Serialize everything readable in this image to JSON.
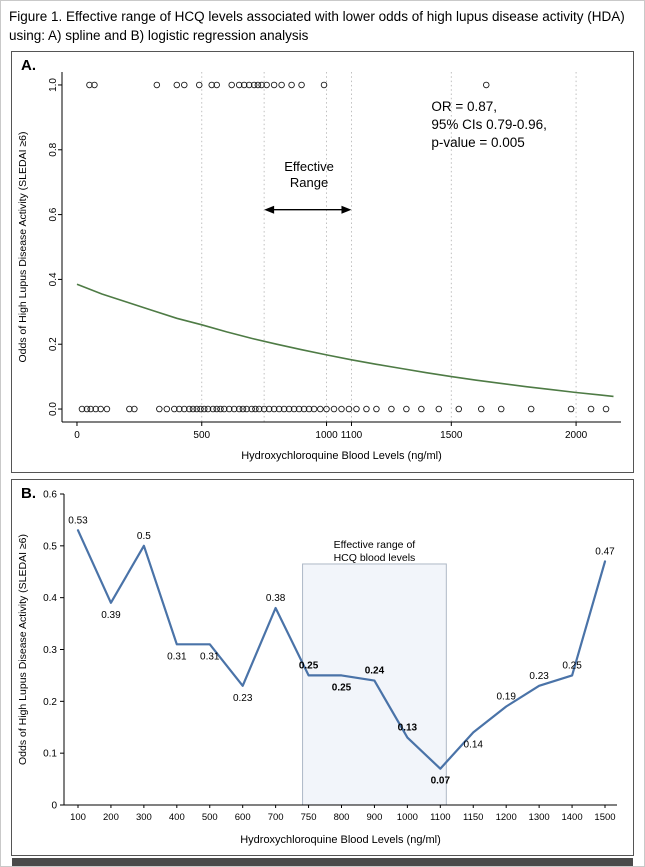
{
  "figure": {
    "title": "Figure 1. Effective range of HCQ levels associated with lower odds of high lupus disease activity (HDA) using: A) spline and B) logistic regression analysis"
  },
  "panels": {
    "a": {
      "label": "A."
    },
    "b": {
      "label": "B."
    }
  },
  "chart_data": [
    {
      "type": "line",
      "panel": "A",
      "subtype": "spline with binary outcome rug points",
      "xlabel": "Hydroxychloroquine Blood Levels (ng/ml)",
      "ylabel": "Odds of High Lupus Disease Activity (SLEDAI ≥6)",
      "xlim": [
        -60,
        2180
      ],
      "ylim": [
        -0.04,
        1.04
      ],
      "xticks": [
        0,
        500,
        1000,
        1100,
        1500,
        2000
      ],
      "yticks": [
        0.0,
        0.2,
        0.4,
        0.6,
        0.8,
        1.0
      ],
      "grid_x_dashed": [
        500,
        750,
        1000,
        1100,
        1500,
        2000
      ],
      "stats_lines": [
        "OR = 0.87,",
        "95% CIs 0.79-0.96,",
        "p-value = 0.005"
      ],
      "effective": {
        "label_lines": [
          "Effective",
          "Range"
        ],
        "label_x": 930,
        "label_y": 0.735,
        "range": [
          750,
          1100
        ],
        "arrow_y": 0.615
      },
      "curve": {
        "color": "#4e7b45",
        "points": [
          [
            0,
            0.385
          ],
          [
            100,
            0.355
          ],
          [
            200,
            0.33
          ],
          [
            300,
            0.305
          ],
          [
            400,
            0.28
          ],
          [
            500,
            0.26
          ],
          [
            600,
            0.238
          ],
          [
            700,
            0.218
          ],
          [
            800,
            0.2
          ],
          [
            900,
            0.183
          ],
          [
            1000,
            0.167
          ],
          [
            1100,
            0.152
          ],
          [
            1200,
            0.138
          ],
          [
            1300,
            0.125
          ],
          [
            1400,
            0.112
          ],
          [
            1500,
            0.1
          ],
          [
            1600,
            0.089
          ],
          [
            1700,
            0.079
          ],
          [
            1800,
            0.069
          ],
          [
            1900,
            0.06
          ],
          [
            2000,
            0.051
          ],
          [
            2100,
            0.043
          ],
          [
            2150,
            0.039
          ]
        ]
      },
      "rug_top": [
        50,
        70,
        320,
        400,
        430,
        490,
        540,
        560,
        620,
        650,
        670,
        690,
        710,
        725,
        740,
        760,
        790,
        820,
        860,
        900,
        990,
        1640
      ],
      "rug_bottom": [
        20,
        40,
        55,
        75,
        95,
        120,
        210,
        230,
        330,
        360,
        390,
        410,
        430,
        450,
        465,
        480,
        495,
        510,
        525,
        545,
        560,
        575,
        590,
        610,
        630,
        650,
        665,
        680,
        700,
        715,
        730,
        750,
        770,
        790,
        810,
        830,
        850,
        870,
        890,
        910,
        930,
        950,
        975,
        1000,
        1030,
        1060,
        1090,
        1120,
        1160,
        1200,
        1260,
        1320,
        1380,
        1450,
        1530,
        1620,
        1700,
        1820,
        1980,
        2060,
        2120
      ]
    },
    {
      "type": "line",
      "panel": "B",
      "subtype": "logistic regression odds by HCQ level",
      "xlabel": "Hydroxychloroquine Blood Levels (ng/ml)",
      "ylabel": "Odds of High Lupus Disease Activity (SLEDAI ≥6)",
      "categories": [
        "100",
        "200",
        "300",
        "400",
        "500",
        "600",
        "700",
        "750",
        "800",
        "900",
        "1000",
        "1100",
        "1150",
        "1200",
        "1300",
        "1400",
        "1500"
      ],
      "values": [
        0.53,
        0.39,
        0.5,
        0.31,
        0.31,
        0.23,
        0.38,
        0.25,
        0.25,
        0.24,
        0.13,
        0.07,
        0.14,
        0.19,
        0.23,
        0.25,
        0.47
      ],
      "label_pos": [
        "above",
        "below",
        "above",
        "below",
        "below",
        "below",
        "above",
        "above",
        "below",
        "above",
        "above",
        "below",
        "below",
        "above",
        "above",
        "above",
        "above"
      ],
      "label_bold": [
        false,
        false,
        false,
        false,
        false,
        false,
        false,
        true,
        true,
        true,
        true,
        true,
        false,
        false,
        false,
        false,
        false
      ],
      "line_color": "#4a73a8",
      "ylim": [
        0,
        0.6
      ],
      "yticks": [
        0,
        0.1,
        0.2,
        0.3,
        0.4,
        0.5,
        0.6
      ],
      "region": {
        "from": "750",
        "to": "1100",
        "top": 0.465,
        "label_lines": [
          "Effective range of",
          "HCQ blood levels"
        ],
        "fill": "#f2f5fa",
        "border": "#aeb8c6"
      }
    }
  ]
}
